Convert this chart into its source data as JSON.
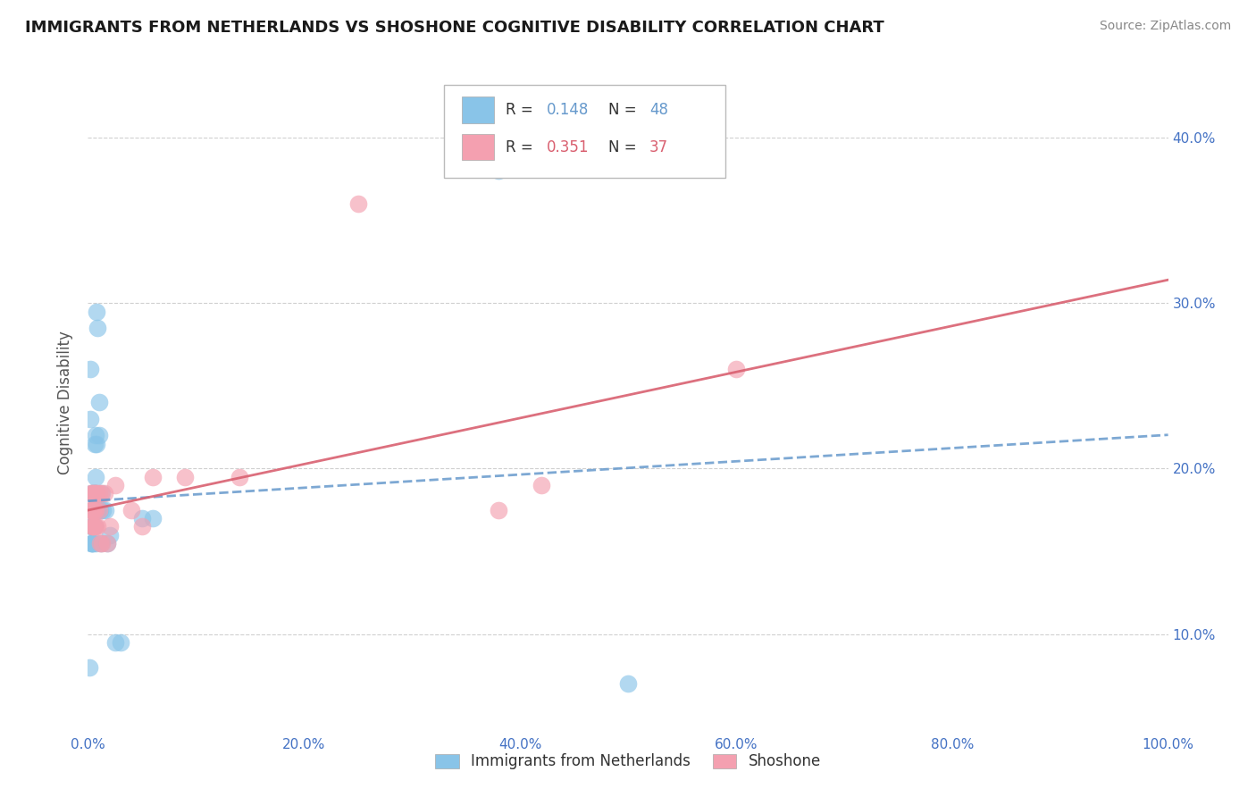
{
  "title": "IMMIGRANTS FROM NETHERLANDS VS SHOSHONE COGNITIVE DISABILITY CORRELATION CHART",
  "source": "Source: ZipAtlas.com",
  "ylabel": "Cognitive Disability",
  "xlim": [
    0,
    1.0
  ],
  "ylim": [
    0.04,
    0.44
  ],
  "x_ticks": [
    0.0,
    0.2,
    0.4,
    0.6,
    0.8,
    1.0
  ],
  "x_tick_labels": [
    "0.0%",
    "20.0%",
    "40.0%",
    "60.0%",
    "80.0%",
    "100.0%"
  ],
  "y_ticks": [
    0.1,
    0.2,
    0.3,
    0.4
  ],
  "y_tick_labels": [
    "10.0%",
    "20.0%",
    "30.0%",
    "40.0%"
  ],
  "R_netherlands": 0.148,
  "N_netherlands": 48,
  "R_shoshone": 0.351,
  "N_shoshone": 37,
  "color_blue": "#89c4e8",
  "color_pink": "#f4a0b0",
  "line_color_blue": "#6699cc",
  "line_color_pink": "#d96070",
  "background_color": "#ffffff",
  "grid_color": "#d0d0d0",
  "netherlands_x": [
    0.001,
    0.002,
    0.002,
    0.003,
    0.003,
    0.003,
    0.004,
    0.004,
    0.004,
    0.004,
    0.004,
    0.005,
    0.005,
    0.005,
    0.005,
    0.005,
    0.005,
    0.006,
    0.006,
    0.006,
    0.006,
    0.006,
    0.006,
    0.007,
    0.007,
    0.007,
    0.007,
    0.007,
    0.008,
    0.008,
    0.008,
    0.009,
    0.009,
    0.01,
    0.01,
    0.011,
    0.012,
    0.013,
    0.014,
    0.016,
    0.018,
    0.02,
    0.025,
    0.03,
    0.05,
    0.06,
    0.38,
    0.5
  ],
  "netherlands_y": [
    0.08,
    0.26,
    0.23,
    0.155,
    0.165,
    0.185,
    0.175,
    0.155,
    0.165,
    0.175,
    0.155,
    0.175,
    0.165,
    0.185,
    0.175,
    0.155,
    0.165,
    0.175,
    0.185,
    0.175,
    0.165,
    0.185,
    0.215,
    0.185,
    0.175,
    0.155,
    0.195,
    0.22,
    0.175,
    0.215,
    0.295,
    0.175,
    0.285,
    0.22,
    0.24,
    0.175,
    0.155,
    0.185,
    0.175,
    0.175,
    0.155,
    0.16,
    0.095,
    0.095,
    0.17,
    0.17,
    0.38,
    0.07
  ],
  "shoshone_x": [
    0.002,
    0.003,
    0.003,
    0.004,
    0.004,
    0.004,
    0.005,
    0.005,
    0.005,
    0.005,
    0.005,
    0.006,
    0.006,
    0.006,
    0.007,
    0.007,
    0.007,
    0.008,
    0.009,
    0.01,
    0.01,
    0.011,
    0.012,
    0.013,
    0.015,
    0.018,
    0.02,
    0.025,
    0.04,
    0.05,
    0.06,
    0.09,
    0.14,
    0.25,
    0.38,
    0.42,
    0.6
  ],
  "shoshone_y": [
    0.175,
    0.175,
    0.185,
    0.175,
    0.165,
    0.185,
    0.175,
    0.165,
    0.185,
    0.175,
    0.165,
    0.185,
    0.175,
    0.165,
    0.175,
    0.185,
    0.165,
    0.185,
    0.165,
    0.185,
    0.175,
    0.155,
    0.185,
    0.155,
    0.185,
    0.155,
    0.165,
    0.19,
    0.175,
    0.165,
    0.195,
    0.195,
    0.195,
    0.36,
    0.175,
    0.19,
    0.26
  ]
}
